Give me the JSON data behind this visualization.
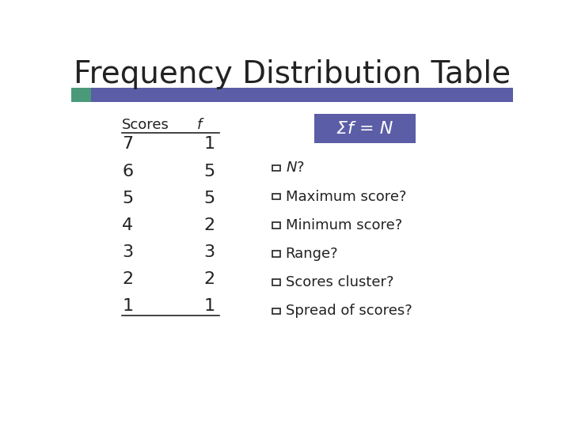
{
  "title": "Frequency Distribution Table",
  "title_fontsize": 28,
  "title_color": "#222222",
  "background_color": "#ffffff",
  "header_bar_color": "#5b5ea6",
  "header_bar_accent": "#4a9a7a",
  "scores": [
    7,
    6,
    5,
    4,
    3,
    2,
    1
  ],
  "frequencies": [
    1,
    5,
    5,
    2,
    3,
    2,
    1
  ],
  "col_header_scores": "Scores",
  "col_header_f": "f",
  "sigma_box_color": "#5b5ea6",
  "sigma_text": "Σf = N",
  "sigma_text_color": "#ffffff",
  "bullet_items": [
    "N?",
    "Maximum score?",
    "Minimum score?",
    "Range?",
    "Scores cluster?",
    "Spread of scores?"
  ],
  "bullet_color": "#222222"
}
